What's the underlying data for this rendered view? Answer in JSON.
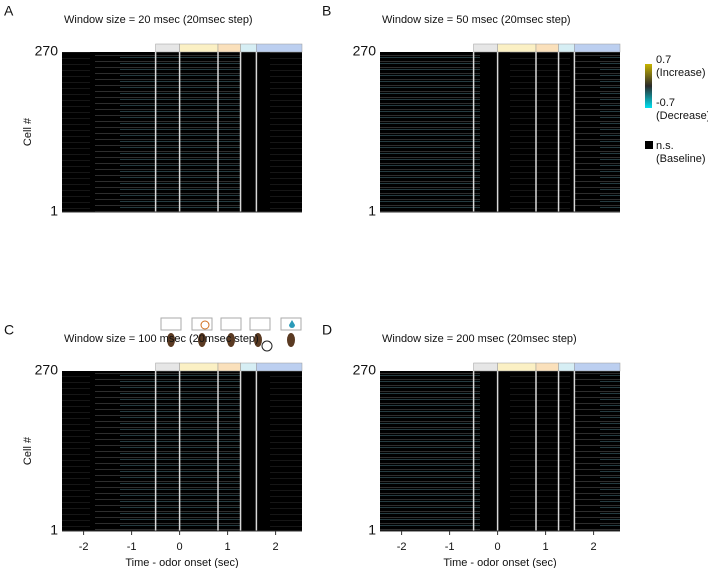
{
  "chart_data": [
    {
      "type": "heatmap",
      "panel_label": "A",
      "title": "Window size = 20 msec (20msec step)",
      "ylabel": "Cell #",
      "ylim": [
        1,
        270
      ],
      "yticks": [
        1,
        270
      ],
      "xlim": [
        -2.45,
        2.55
      ],
      "event_lines": [
        -0.5,
        0,
        0.8,
        1.27,
        1.6
      ],
      "epoch_colors": [
        "#e6e6e6",
        "#fbf0c4",
        "#fae0bb",
        "#d6eef4",
        "#bccff0"
      ],
      "background": "#000000"
    },
    {
      "type": "heatmap",
      "panel_label": "B",
      "title": "Window size = 50 msec (20msec step)",
      "ylim": [
        1,
        270
      ],
      "yticks": [
        1,
        270
      ],
      "xlim": [
        -2.45,
        2.55
      ],
      "event_lines": [
        -0.5,
        0,
        0.8,
        1.27,
        1.6
      ],
      "epoch_colors": [
        "#e6e6e6",
        "#fbf0c4",
        "#fae0bb",
        "#d6eef4",
        "#bccff0"
      ],
      "background": "#000000"
    },
    {
      "type": "heatmap",
      "panel_label": "C",
      "title": "Window size = 100 msec (20msec step)",
      "ylabel": "Cell #",
      "xlabel": "Time - odor onset (sec)",
      "ylim": [
        1,
        270
      ],
      "yticks": [
        1,
        270
      ],
      "xlim": [
        -2.45,
        2.55
      ],
      "xticks": [
        -2,
        -1,
        0,
        1,
        2
      ],
      "event_lines": [
        -0.5,
        0,
        0.8,
        1.27,
        1.6
      ],
      "epoch_colors": [
        "#e6e6e6",
        "#fbf0c4",
        "#fae0bb",
        "#d6eef4",
        "#bccff0"
      ],
      "background": "#000000"
    },
    {
      "type": "heatmap",
      "panel_label": "D",
      "title": "Window size = 200 msec (20msec step)",
      "xlabel": "Time - odor onset (sec)",
      "ylim": [
        1,
        270
      ],
      "yticks": [
        1,
        270
      ],
      "xlim": [
        -2.45,
        2.55
      ],
      "xticks": [
        -2,
        -1,
        0,
        1,
        2
      ],
      "event_lines": [
        -0.5,
        0,
        0.8,
        1.27,
        1.6
      ],
      "epoch_colors": [
        "#e6e6e6",
        "#fbf0c4",
        "#fae0bb",
        "#d6eef4",
        "#bccff0"
      ],
      "background": "#000000"
    }
  ],
  "colorbar": {
    "clim": [
      -0.7,
      0.7
    ],
    "high_text": "(Increase)",
    "low_text": "(Decrease)",
    "high_color": "#c8b400",
    "low_color": "#00e0f0",
    "ns_label": "n.s.",
    "ns_text": "(Baseline)",
    "ns_color": "#000000"
  }
}
